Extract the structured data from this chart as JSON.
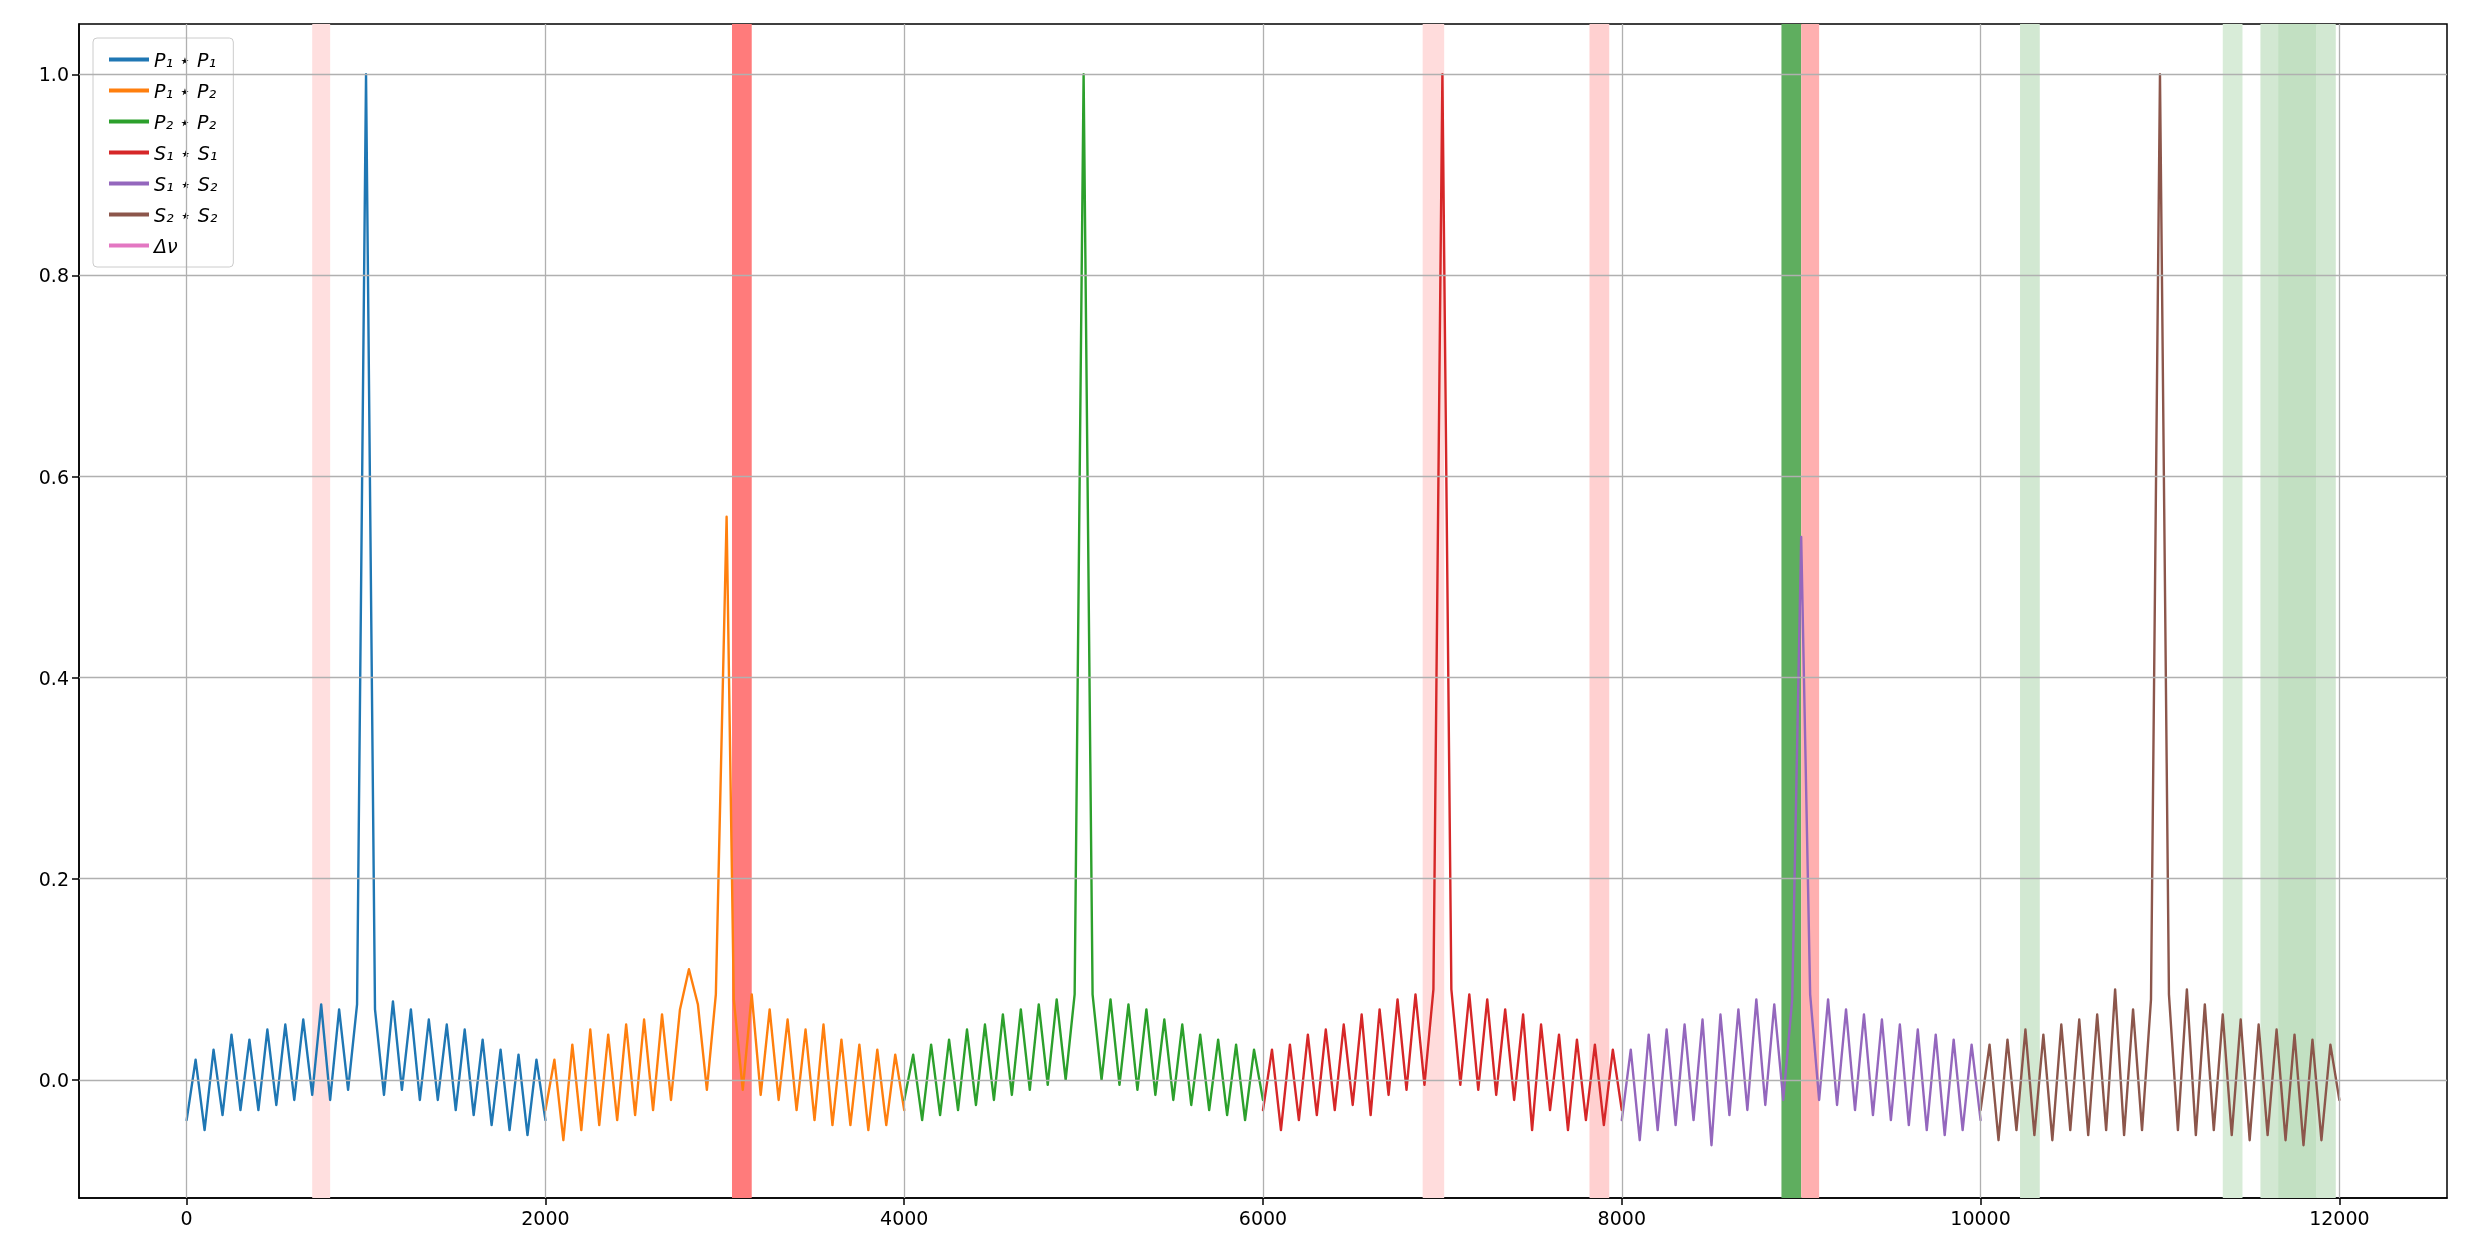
{
  "chart_data": {
    "type": "line",
    "xlim": [
      -600,
      12600
    ],
    "ylim": [
      -0.1175,
      1.05
    ],
    "xticks": [
      0,
      2000,
      4000,
      6000,
      8000,
      10000,
      12000
    ],
    "yticks": [
      {
        "value": 0,
        "label": "0.0"
      },
      {
        "value": 0.2,
        "label": "0.2"
      },
      {
        "value": 0.4,
        "label": "0.4"
      },
      {
        "value": 0.6,
        "label": "0.6"
      },
      {
        "value": 0.8,
        "label": "0.8"
      },
      {
        "value": 1,
        "label": "1.0"
      }
    ],
    "grid": true,
    "legend": "top left",
    "marker": "none",
    "line_style": "solid",
    "series": [
      {
        "name": "P₁ ⋆ P₁",
        "color": "#1f77b4",
        "x": [
          0,
          50,
          100,
          150,
          200,
          250,
          300,
          350,
          400,
          450,
          500,
          550,
          600,
          650,
          700,
          750,
          800,
          850,
          900,
          950,
          1000,
          1050,
          1100,
          1150,
          1200,
          1250,
          1300,
          1350,
          1400,
          1450,
          1500,
          1550,
          1600,
          1650,
          1700,
          1750,
          1800,
          1850,
          1900,
          1950,
          2000
        ],
        "values": [
          -0.04,
          0.02,
          -0.05,
          0.03,
          -0.035,
          0.045,
          -0.03,
          0.04,
          -0.03,
          0.05,
          -0.025,
          0.055,
          -0.02,
          0.06,
          -0.015,
          0.075,
          -0.02,
          0.07,
          -0.01,
          0.075,
          1.0,
          0.07,
          -0.015,
          0.078,
          -0.01,
          0.07,
          -0.02,
          0.06,
          -0.02,
          0.055,
          -0.03,
          0.05,
          -0.035,
          0.04,
          -0.045,
          0.03,
          -0.05,
          0.025,
          -0.055,
          0.02,
          -0.04
        ]
      },
      {
        "name": "P₁ ⋆ P₂",
        "color": "#ff7f0e",
        "x": [
          2000,
          2050,
          2100,
          2150,
          2200,
          2250,
          2300,
          2350,
          2400,
          2450,
          2500,
          2550,
          2600,
          2650,
          2700,
          2750,
          2800,
          2850,
          2900,
          2950,
          3010,
          3050,
          3100,
          3150,
          3200,
          3250,
          3300,
          3350,
          3400,
          3450,
          3500,
          3550,
          3600,
          3650,
          3700,
          3750,
          3800,
          3850,
          3900,
          3950,
          4000
        ],
        "values": [
          -0.03,
          0.02,
          -0.06,
          0.035,
          -0.05,
          0.05,
          -0.045,
          0.045,
          -0.04,
          0.055,
          -0.035,
          0.06,
          -0.03,
          0.065,
          -0.02,
          0.07,
          0.11,
          0.075,
          -0.01,
          0.085,
          0.56,
          0.08,
          -0.01,
          0.085,
          -0.015,
          0.07,
          -0.02,
          0.06,
          -0.03,
          0.05,
          -0.04,
          0.055,
          -0.045,
          0.04,
          -0.045,
          0.035,
          -0.05,
          0.03,
          -0.045,
          0.025,
          -0.03
        ]
      },
      {
        "name": "P₂ ⋆ P₂",
        "color": "#2ca02c",
        "x": [
          4000,
          4050,
          4100,
          4150,
          4200,
          4250,
          4300,
          4350,
          4400,
          4450,
          4500,
          4550,
          4600,
          4650,
          4700,
          4750,
          4800,
          4850,
          4900,
          4950,
          5000,
          5050,
          5100,
          5150,
          5200,
          5250,
          5300,
          5350,
          5400,
          5450,
          5500,
          5550,
          5600,
          5650,
          5700,
          5750,
          5800,
          5850,
          5900,
          5950,
          6000
        ],
        "values": [
          -0.02,
          0.025,
          -0.04,
          0.035,
          -0.035,
          0.04,
          -0.03,
          0.05,
          -0.025,
          0.055,
          -0.02,
          0.065,
          -0.015,
          0.07,
          -0.01,
          0.075,
          -0.005,
          0.08,
          0.0,
          0.085,
          1.0,
          0.085,
          0.0,
          0.08,
          -0.005,
          0.075,
          -0.01,
          0.07,
          -0.015,
          0.06,
          -0.02,
          0.055,
          -0.025,
          0.045,
          -0.03,
          0.04,
          -0.035,
          0.035,
          -0.04,
          0.03,
          -0.02
        ]
      },
      {
        "name": "S₁ ⋆ S₁",
        "color": "#d62728",
        "x": [
          6000,
          6050,
          6100,
          6150,
          6200,
          6250,
          6300,
          6350,
          6400,
          6450,
          6500,
          6550,
          6600,
          6650,
          6700,
          6750,
          6800,
          6850,
          6900,
          6950,
          7000,
          7050,
          7100,
          7150,
          7200,
          7250,
          7300,
          7350,
          7400,
          7450,
          7500,
          7550,
          7600,
          7650,
          7700,
          7750,
          7800,
          7850,
          7900,
          7950,
          8000
        ],
        "values": [
          -0.03,
          0.03,
          -0.05,
          0.035,
          -0.04,
          0.045,
          -0.035,
          0.05,
          -0.03,
          0.055,
          -0.025,
          0.065,
          -0.035,
          0.07,
          -0.015,
          0.08,
          -0.01,
          0.085,
          -0.005,
          0.09,
          1.0,
          0.09,
          -0.005,
          0.085,
          -0.01,
          0.08,
          -0.015,
          0.07,
          -0.02,
          0.065,
          -0.05,
          0.055,
          -0.03,
          0.045,
          -0.05,
          0.04,
          -0.04,
          0.035,
          -0.045,
          0.03,
          -0.03
        ]
      },
      {
        "name": "S₁ ⋆ S₂",
        "color": "#9467bd",
        "x": [
          8000,
          8050,
          8100,
          8150,
          8200,
          8250,
          8300,
          8350,
          8400,
          8450,
          8500,
          8550,
          8600,
          8650,
          8700,
          8750,
          8800,
          8850,
          8900,
          8950,
          9000,
          9050,
          9100,
          9150,
          9200,
          9250,
          9300,
          9350,
          9400,
          9450,
          9500,
          9550,
          9600,
          9650,
          9700,
          9750,
          9800,
          9850,
          9900,
          9950,
          10000
        ],
        "values": [
          -0.04,
          0.03,
          -0.06,
          0.045,
          -0.05,
          0.05,
          -0.045,
          0.055,
          -0.04,
          0.06,
          -0.065,
          0.065,
          -0.035,
          0.07,
          -0.03,
          0.08,
          -0.025,
          0.075,
          -0.02,
          0.08,
          0.54,
          0.085,
          -0.02,
          0.08,
          -0.025,
          0.07,
          -0.03,
          0.065,
          -0.035,
          0.06,
          -0.04,
          0.055,
          -0.045,
          0.05,
          -0.05,
          0.045,
          -0.055,
          0.04,
          -0.05,
          0.035,
          -0.04
        ]
      },
      {
        "name": "S₂ ⋆ S₂",
        "color": "#8c564b",
        "x": [
          10000,
          10050,
          10100,
          10150,
          10200,
          10250,
          10300,
          10350,
          10400,
          10450,
          10500,
          10550,
          10600,
          10650,
          10700,
          10750,
          10800,
          10850,
          10900,
          10950,
          11000,
          11050,
          11100,
          11150,
          11200,
          11250,
          11300,
          11350,
          11400,
          11450,
          11500,
          11550,
          11600,
          11650,
          11700,
          11750,
          11800,
          11850,
          11900,
          11950,
          12000
        ],
        "values": [
          -0.03,
          0.035,
          -0.06,
          0.04,
          -0.05,
          0.05,
          -0.055,
          0.045,
          -0.06,
          0.055,
          -0.05,
          0.06,
          -0.055,
          0.065,
          -0.05,
          0.09,
          -0.055,
          0.07,
          -0.05,
          0.08,
          1.0,
          0.085,
          -0.05,
          0.09,
          -0.055,
          0.075,
          -0.05,
          0.065,
          -0.055,
          0.06,
          -0.06,
          0.055,
          -0.055,
          0.05,
          -0.06,
          0.045,
          -0.065,
          0.04,
          -0.06,
          0.035,
          -0.02
        ]
      },
      {
        "name": "Δν",
        "color": "#e377c2"
      }
    ],
    "bands": [
      {
        "axis": "x",
        "from": 700,
        "to": 800,
        "color": "#ffdfdf"
      },
      {
        "axis": "x",
        "from": 3040,
        "to": 3150,
        "color": "#ff7b7b"
      },
      {
        "axis": "x",
        "from": 6890,
        "to": 7010,
        "color": "#ffdcdc"
      },
      {
        "axis": "x",
        "from": 7820,
        "to": 7930,
        "color": "#ffd0d0"
      },
      {
        "axis": "x",
        "from": 8890,
        "to": 9000,
        "color": "#5fae5f"
      },
      {
        "axis": "x",
        "from": 9000,
        "to": 9100,
        "color": "#ffb0b0"
      },
      {
        "axis": "x",
        "from": 10220,
        "to": 10330,
        "color": "#d2e8d2"
      },
      {
        "axis": "x",
        "from": 11350,
        "to": 11460,
        "color": "#d8ecd8"
      },
      {
        "axis": "x",
        "from": 11560,
        "to": 11770,
        "color": "#d2e8d2"
      },
      {
        "axis": "x",
        "from": 11660,
        "to": 11870,
        "color": "#c2e0c2"
      },
      {
        "axis": "x",
        "from": 11870,
        "to": 11980,
        "color": "#d2e8d2"
      }
    ]
  }
}
